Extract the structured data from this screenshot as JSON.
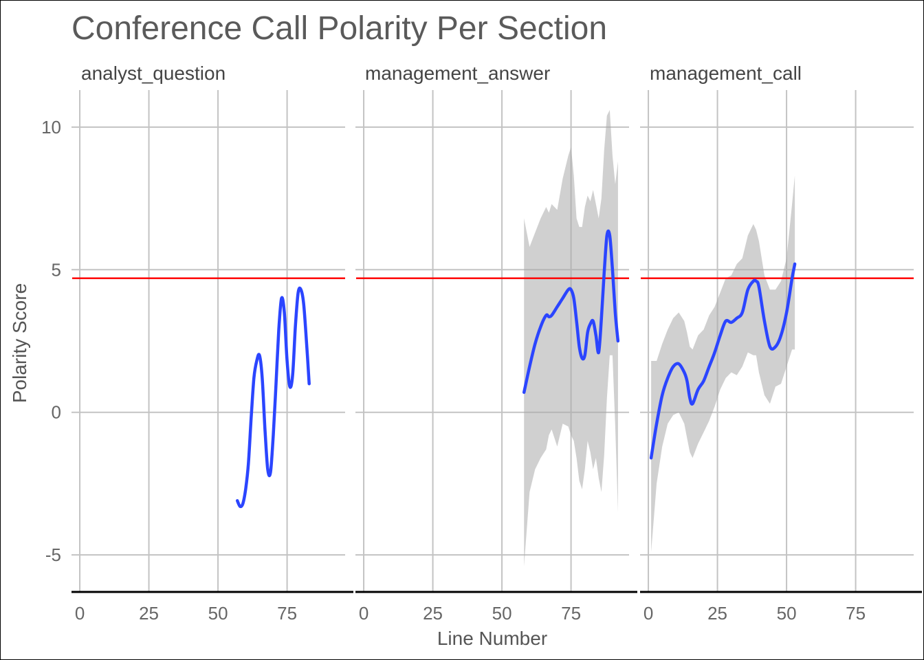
{
  "chart_data": {
    "type": "line",
    "title": "Conference Call Polarity Per Section",
    "xlabel": "Line Number",
    "ylabel": "Polarity Score",
    "xlim": [
      -3,
      96
    ],
    "ylim": [
      -6.3,
      11.3
    ],
    "x_ticks": [
      0,
      25,
      50,
      75
    ],
    "y_ticks": [
      -5,
      0,
      5,
      10
    ],
    "reference_line": {
      "y": 4.7,
      "color": "#ff0000"
    },
    "line_color": "#2b45ff",
    "band_color": "#a9a9a9",
    "grid": true,
    "facets": [
      {
        "label": "analyst_question",
        "x": [
          57,
          58,
          59,
          60,
          61,
          62,
          63,
          64,
          65,
          66,
          67,
          68,
          69,
          70,
          71,
          72,
          73,
          74,
          75,
          76,
          77,
          78,
          79,
          80,
          81,
          82,
          83
        ],
        "y": [
          -3.1,
          -3.3,
          -3.2,
          -2.7,
          -1.8,
          -0.2,
          1.2,
          1.8,
          2.0,
          1.2,
          -0.6,
          -2.0,
          -2.1,
          -0.8,
          1.0,
          2.9,
          4.0,
          3.5,
          1.8,
          0.9,
          1.3,
          3.0,
          4.2,
          4.3,
          3.8,
          2.5,
          1.0
        ],
        "lower": [],
        "upper": []
      },
      {
        "label": "management_answer",
        "x": [
          58,
          60,
          62,
          64,
          66,
          67,
          68,
          70,
          72,
          74,
          75,
          76,
          77,
          78,
          79,
          80,
          81,
          82,
          83,
          84,
          85,
          86,
          87,
          88,
          89,
          90,
          91,
          92
        ],
        "y": [
          0.7,
          1.6,
          2.4,
          3.0,
          3.4,
          3.35,
          3.4,
          3.7,
          4.0,
          4.3,
          4.3,
          4.0,
          3.2,
          2.3,
          1.9,
          2.0,
          2.8,
          3.1,
          3.2,
          2.7,
          2.1,
          3.3,
          4.9,
          6.2,
          6.2,
          5.0,
          3.5,
          2.5
        ],
        "lower": [
          -5.4,
          -2.8,
          -2.0,
          -1.6,
          -1.3,
          -0.8,
          -0.6,
          -1.2,
          -0.4,
          -0.5,
          -0.8,
          -1.0,
          -1.6,
          -2.4,
          -2.7,
          -2.0,
          -1.0,
          -1.4,
          -2.0,
          -1.6,
          -2.3,
          -2.8,
          -1.5,
          0.5,
          2.0,
          2.0,
          -0.5,
          -3.5
        ],
        "upper": [
          6.8,
          5.8,
          6.3,
          6.8,
          7.2,
          7.0,
          7.3,
          7.1,
          8.2,
          9.0,
          9.3,
          8.3,
          6.8,
          6.5,
          6.5,
          7.2,
          7.6,
          7.4,
          7.8,
          7.3,
          6.8,
          7.5,
          9.2,
          10.4,
          10.6,
          9.0,
          8.0,
          8.8
        ]
      },
      {
        "label": "management_call",
        "x": [
          1,
          3,
          5,
          7,
          9,
          11,
          13,
          14,
          15,
          16,
          18,
          20,
          22,
          24,
          26,
          28,
          30,
          32,
          34,
          36,
          38,
          39,
          40,
          42,
          44,
          46,
          48,
          50,
          52,
          53
        ],
        "y": [
          -1.6,
          -0.4,
          0.6,
          1.2,
          1.6,
          1.7,
          1.4,
          1.1,
          0.5,
          0.3,
          0.8,
          1.1,
          1.6,
          2.1,
          2.7,
          3.2,
          3.15,
          3.3,
          3.5,
          4.3,
          4.6,
          4.6,
          4.4,
          3.2,
          2.3,
          2.3,
          2.7,
          3.5,
          4.7,
          5.2
        ],
        "lower": [
          -4.9,
          -2.5,
          -1.2,
          -0.4,
          -0.1,
          0.0,
          -0.4,
          -0.9,
          -1.4,
          -1.6,
          -1.1,
          -0.7,
          -0.3,
          0.2,
          0.8,
          1.2,
          1.4,
          1.3,
          1.6,
          2.1,
          2.0,
          2.0,
          1.4,
          0.6,
          0.3,
          0.9,
          1.0,
          1.6,
          2.2,
          2.2
        ],
        "upper": [
          1.8,
          1.8,
          2.4,
          2.9,
          3.3,
          3.5,
          3.2,
          2.8,
          2.3,
          2.2,
          2.7,
          2.9,
          3.4,
          3.7,
          4.2,
          4.7,
          4.8,
          5.2,
          5.4,
          6.2,
          6.6,
          6.4,
          6.0,
          4.8,
          4.3,
          4.3,
          4.6,
          5.4,
          7.3,
          8.3
        ]
      }
    ]
  }
}
